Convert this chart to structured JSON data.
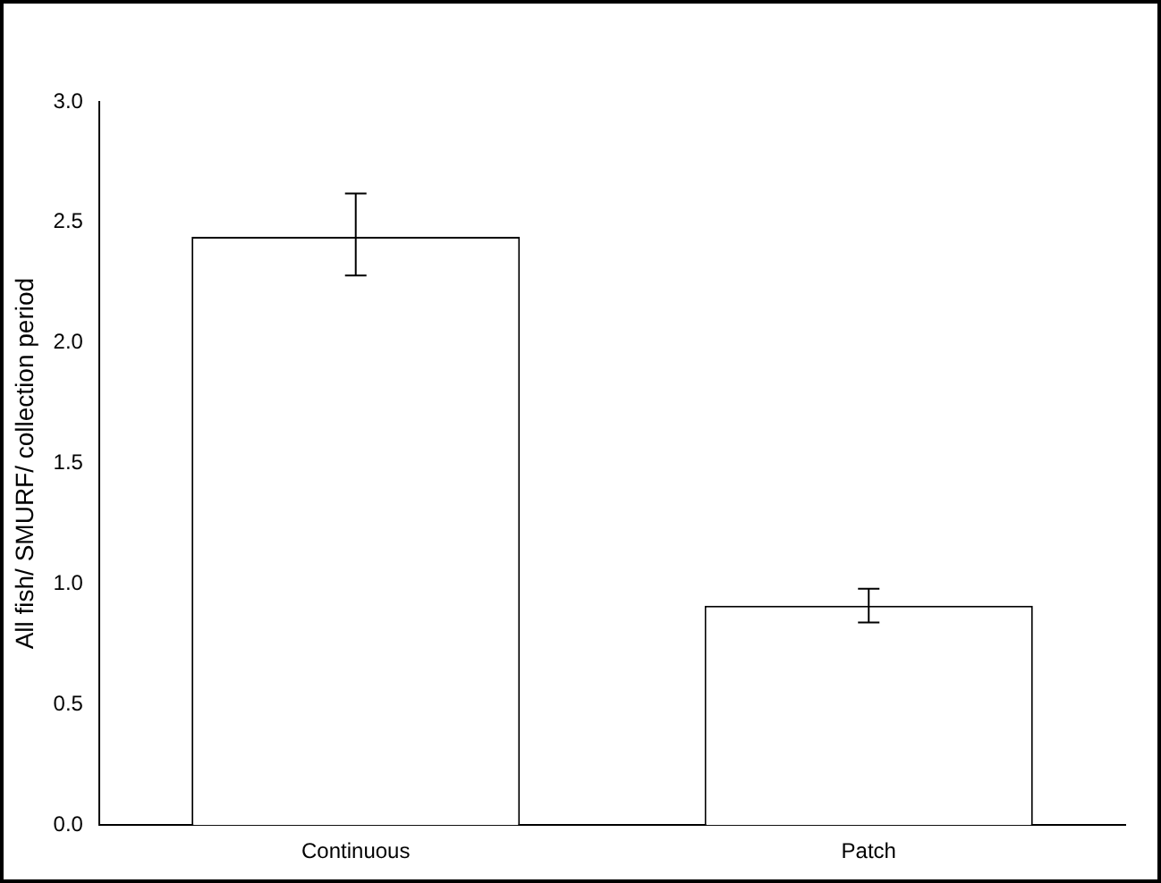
{
  "chart_data": {
    "type": "bar",
    "ylabel": "All fish/ SMURF/ collection period",
    "categories": [
      "Continuous",
      "Patch"
    ],
    "values": [
      2.44,
      0.91
    ],
    "errors": [
      [
        2.28,
        2.62
      ],
      [
        0.84,
        0.98
      ]
    ],
    "colors": [
      "#ffffff",
      "#ffffff"
    ],
    "ylim": [
      0,
      3.0
    ],
    "yticks": [
      {
        "value": 0,
        "label": "0.0"
      },
      {
        "value": 0.5,
        "label": "0.5"
      },
      {
        "value": 1,
        "label": "1.0"
      },
      {
        "value": 1.5,
        "label": "1.5"
      },
      {
        "value": 2,
        "label": "2.0"
      },
      {
        "value": 2.5,
        "label": "2.5"
      },
      {
        "value": 3,
        "label": "3.0"
      }
    ],
    "grid": false,
    "legend": false
  }
}
